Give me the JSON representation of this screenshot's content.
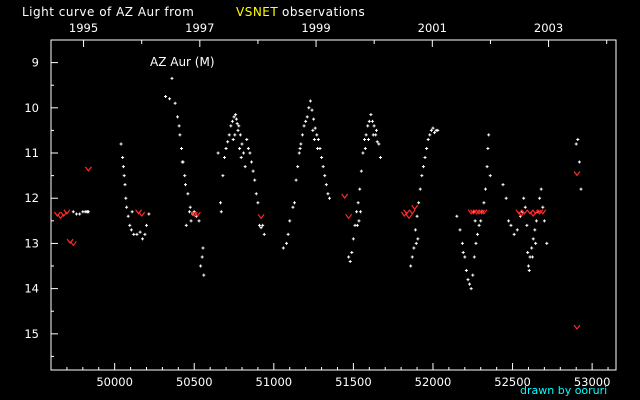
{
  "chart_data": {
    "type": "scatter",
    "title_parts": [
      {
        "text": "Light curve of AZ Aur from",
        "color": "#ffffff"
      },
      {
        "text": "VSNET",
        "color": "#ffff00"
      },
      {
        "text": "observations",
        "color": "#ffffff"
      }
    ],
    "star_label": "AZ Aur (M)",
    "credit": "drawn by ooruri",
    "colors": {
      "background": "#000000",
      "positive": "#ffffff",
      "faint_limit": "#ff2a2a",
      "title_highlight": "#ffff00",
      "credit": "#00ffff"
    },
    "x_axis": {
      "quantity": "JD - 2400000",
      "range": [
        49600,
        53150
      ],
      "ticks": [
        50000,
        50500,
        51000,
        51500,
        52000,
        52500,
        53000
      ],
      "tick_labels": [
        "50000",
        "50500",
        "51000",
        "51500",
        "52000",
        "52500",
        "53000"
      ]
    },
    "top_axis": {
      "range": [
        1994.44,
        2004.16
      ],
      "ticks": [
        1995,
        1997,
        1999,
        2001,
        2003
      ],
      "tick_labels": [
        "1995",
        "1997",
        "1999",
        "2001",
        "2003"
      ]
    },
    "y_axis": {
      "quantity": "magnitude",
      "inverted": true,
      "range": [
        8.5,
        15.8
      ],
      "ticks": [
        9,
        10,
        11,
        12,
        13,
        14,
        15
      ],
      "tick_labels": [
        "9",
        "10",
        "11",
        "12",
        "13",
        "14",
        "15"
      ]
    },
    "series": [
      {
        "marker": "dot",
        "color": "#ffffff",
        "points": [
          [
            49835,
            12.3
          ],
          [
            49830,
            12.3
          ],
          [
            49825,
            12.3
          ],
          [
            49815,
            12.3
          ],
          [
            49800,
            12.3
          ],
          [
            49780,
            12.35
          ],
          [
            49760,
            12.35
          ],
          [
            49740,
            12.3
          ],
          [
            50040,
            10.8
          ],
          [
            50050,
            11.1
          ],
          [
            50055,
            11.3
          ],
          [
            50060,
            11.5
          ],
          [
            50065,
            11.7
          ],
          [
            50070,
            12.0
          ],
          [
            50075,
            12.2
          ],
          [
            50085,
            12.4
          ],
          [
            50095,
            12.6
          ],
          [
            50105,
            12.7
          ],
          [
            50120,
            12.8
          ],
          [
            50140,
            12.8
          ],
          [
            50160,
            12.75
          ],
          [
            50175,
            12.9
          ],
          [
            50190,
            12.8
          ],
          [
            50200,
            12.6
          ],
          [
            50215,
            12.35
          ],
          [
            50110,
            12.3
          ],
          [
            50320,
            9.75
          ],
          [
            50345,
            9.8
          ],
          [
            50360,
            9.35
          ],
          [
            50380,
            9.9
          ],
          [
            50395,
            10.2
          ],
          [
            50405,
            10.4
          ],
          [
            50410,
            10.6
          ],
          [
            50420,
            10.9
          ],
          [
            50425,
            11.2
          ],
          [
            50440,
            11.5
          ],
          [
            50445,
            11.7
          ],
          [
            50460,
            11.9
          ],
          [
            50470,
            12.3
          ],
          [
            50480,
            12.5
          ],
          [
            50475,
            12.2
          ],
          [
            50490,
            12.35
          ],
          [
            50500,
            12.3
          ],
          [
            50515,
            12.4
          ],
          [
            50530,
            12.5
          ],
          [
            50540,
            13.5
          ],
          [
            50560,
            13.7
          ],
          [
            50550,
            13.3
          ],
          [
            50555,
            13.1
          ],
          [
            50430,
            11.2
          ],
          [
            50450,
            12.6
          ],
          [
            50650,
            11.0
          ],
          [
            50665,
            12.1
          ],
          [
            50670,
            12.3
          ],
          [
            50680,
            11.5
          ],
          [
            50690,
            11.1
          ],
          [
            50700,
            10.9
          ],
          [
            50710,
            10.75
          ],
          [
            50720,
            10.6
          ],
          [
            50730,
            10.4
          ],
          [
            50740,
            10.3
          ],
          [
            50750,
            10.2
          ],
          [
            50760,
            10.15
          ],
          [
            50765,
            10.25
          ],
          [
            50770,
            10.35
          ],
          [
            50775,
            10.5
          ],
          [
            50780,
            10.4
          ],
          [
            50790,
            10.6
          ],
          [
            50800,
            10.8
          ],
          [
            50810,
            11.0
          ],
          [
            50820,
            11.3
          ],
          [
            50830,
            10.7
          ],
          [
            50840,
            10.9
          ],
          [
            50850,
            11.0
          ],
          [
            50860,
            11.2
          ],
          [
            50870,
            11.4
          ],
          [
            50880,
            11.6
          ],
          [
            50890,
            11.9
          ],
          [
            50900,
            12.1
          ],
          [
            50910,
            12.6
          ],
          [
            50920,
            12.65
          ],
          [
            50930,
            12.6
          ],
          [
            50940,
            12.8
          ],
          [
            50755,
            10.6
          ],
          [
            50745,
            10.7
          ],
          [
            50785,
            10.9
          ],
          [
            50795,
            11.1
          ],
          [
            51060,
            13.1
          ],
          [
            51080,
            13.0
          ],
          [
            51090,
            12.8
          ],
          [
            51100,
            12.5
          ],
          [
            51120,
            12.2
          ],
          [
            51130,
            12.1
          ],
          [
            51140,
            11.6
          ],
          [
            51150,
            11.3
          ],
          [
            51160,
            11.0
          ],
          [
            51165,
            10.9
          ],
          [
            51170,
            10.8
          ],
          [
            51180,
            10.6
          ],
          [
            51190,
            10.4
          ],
          [
            51200,
            10.3
          ],
          [
            51210,
            10.2
          ],
          [
            51220,
            10.0
          ],
          [
            51230,
            9.85
          ],
          [
            51240,
            10.05
          ],
          [
            51250,
            10.25
          ],
          [
            51260,
            10.45
          ],
          [
            51270,
            10.6
          ],
          [
            51280,
            10.7
          ],
          [
            51290,
            10.9
          ],
          [
            51300,
            11.1
          ],
          [
            51310,
            11.3
          ],
          [
            51320,
            11.5
          ],
          [
            51330,
            11.7
          ],
          [
            51340,
            11.9
          ],
          [
            51350,
            12.0
          ],
          [
            51245,
            10.5
          ],
          [
            51255,
            10.7
          ],
          [
            51275,
            10.9
          ],
          [
            51470,
            13.3
          ],
          [
            51480,
            13.4
          ],
          [
            51490,
            13.2
          ],
          [
            51500,
            12.9
          ],
          [
            51510,
            12.6
          ],
          [
            51520,
            12.3
          ],
          [
            51530,
            12.1
          ],
          [
            51540,
            11.8
          ],
          [
            51550,
            11.4
          ],
          [
            51560,
            11.0
          ],
          [
            51570,
            10.7
          ],
          [
            51580,
            10.6
          ],
          [
            51590,
            10.4
          ],
          [
            51600,
            10.3
          ],
          [
            51610,
            10.15
          ],
          [
            51620,
            10.3
          ],
          [
            51630,
            10.4
          ],
          [
            51640,
            10.6
          ],
          [
            51650,
            10.75
          ],
          [
            51660,
            10.8
          ],
          [
            51670,
            11.1
          ],
          [
            51575,
            10.9
          ],
          [
            51595,
            10.7
          ],
          [
            51625,
            10.6
          ],
          [
            51645,
            10.5
          ],
          [
            51545,
            12.3
          ],
          [
            51535,
            12.5
          ],
          [
            51525,
            12.6
          ],
          [
            51860,
            13.5
          ],
          [
            51870,
            13.3
          ],
          [
            51880,
            13.1
          ],
          [
            51890,
            12.7
          ],
          [
            51900,
            12.4
          ],
          [
            51910,
            12.1
          ],
          [
            51920,
            11.8
          ],
          [
            51930,
            11.5
          ],
          [
            51940,
            11.3
          ],
          [
            51950,
            11.1
          ],
          [
            51960,
            10.9
          ],
          [
            51970,
            10.7
          ],
          [
            51980,
            10.6
          ],
          [
            51990,
            10.5
          ],
          [
            52000,
            10.45
          ],
          [
            52010,
            10.55
          ],
          [
            52020,
            10.5
          ],
          [
            52030,
            10.5
          ],
          [
            51895,
            13.0
          ],
          [
            51905,
            12.9
          ],
          [
            52150,
            12.4
          ],
          [
            52170,
            12.7
          ],
          [
            52185,
            13.0
          ],
          [
            52200,
            13.3
          ],
          [
            52210,
            13.6
          ],
          [
            52220,
            13.8
          ],
          [
            52230,
            13.9
          ],
          [
            52240,
            14.0
          ],
          [
            52250,
            13.7
          ],
          [
            52260,
            13.3
          ],
          [
            52270,
            13.0
          ],
          [
            52280,
            12.8
          ],
          [
            52290,
            12.6
          ],
          [
            52300,
            12.5
          ],
          [
            52310,
            12.3
          ],
          [
            52320,
            12.1
          ],
          [
            52330,
            11.8
          ],
          [
            52340,
            11.3
          ],
          [
            52345,
            10.9
          ],
          [
            52350,
            10.6
          ],
          [
            52360,
            11.5
          ],
          [
            52190,
            13.2
          ],
          [
            52265,
            12.5
          ],
          [
            52255,
            12.3
          ],
          [
            52440,
            11.7
          ],
          [
            52460,
            12.0
          ],
          [
            52475,
            12.5
          ],
          [
            52490,
            12.6
          ],
          [
            52510,
            12.8
          ],
          [
            52530,
            12.7
          ],
          [
            52550,
            12.4
          ],
          [
            52560,
            12.3
          ],
          [
            52570,
            12.0
          ],
          [
            52580,
            12.2
          ],
          [
            52590,
            12.6
          ],
          [
            52595,
            13.2
          ],
          [
            52600,
            13.5
          ],
          [
            52610,
            13.3
          ],
          [
            52620,
            13.1
          ],
          [
            52630,
            12.9
          ],
          [
            52640,
            12.7
          ],
          [
            52650,
            12.5
          ],
          [
            52660,
            12.3
          ],
          [
            52670,
            12.0
          ],
          [
            52680,
            11.8
          ],
          [
            52690,
            12.2
          ],
          [
            52700,
            12.5
          ],
          [
            52715,
            13.0
          ],
          [
            52605,
            13.6
          ],
          [
            52625,
            13.3
          ],
          [
            52645,
            13.0
          ],
          [
            52900,
            10.8
          ],
          [
            52920,
            11.2
          ],
          [
            52930,
            11.8
          ],
          [
            52910,
            10.7
          ]
        ]
      },
      {
        "marker": "v",
        "color": "#ff2a2a",
        "points": [
          [
            49640,
            12.35
          ],
          [
            49660,
            12.4
          ],
          [
            49680,
            12.35
          ],
          [
            49700,
            12.3
          ],
          [
            49720,
            12.95
          ],
          [
            49740,
            13.0
          ],
          [
            49835,
            11.35
          ],
          [
            50150,
            12.3
          ],
          [
            50170,
            12.35
          ],
          [
            50500,
            12.35
          ],
          [
            50520,
            12.35
          ],
          [
            50920,
            12.4
          ],
          [
            51445,
            11.95
          ],
          [
            51470,
            12.4
          ],
          [
            51820,
            12.35
          ],
          [
            51835,
            12.3
          ],
          [
            51850,
            12.4
          ],
          [
            51870,
            12.3
          ],
          [
            51885,
            12.2
          ],
          [
            52240,
            12.3
          ],
          [
            52255,
            12.3
          ],
          [
            52275,
            12.3
          ],
          [
            52290,
            12.3
          ],
          [
            52305,
            12.3
          ],
          [
            52320,
            12.3
          ],
          [
            52540,
            12.3
          ],
          [
            52555,
            12.35
          ],
          [
            52575,
            12.3
          ],
          [
            52610,
            12.3
          ],
          [
            52630,
            12.35
          ],
          [
            52645,
            12.3
          ],
          [
            52670,
            12.3
          ],
          [
            52690,
            12.3
          ],
          [
            52905,
            11.45
          ],
          [
            52905,
            14.85
          ]
        ]
      }
    ]
  }
}
